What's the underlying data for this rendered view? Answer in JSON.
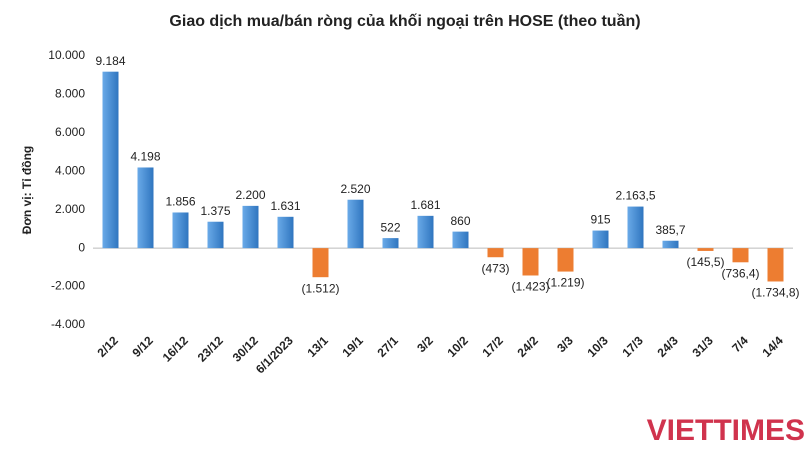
{
  "chart_data": {
    "type": "bar",
    "title": "Giao dịch mua/bán ròng của khối ngoại trên HOSE (theo tuần)",
    "y_label": "Đơn vị: Tỉ đồng",
    "watermark": "VIETTIMES",
    "categories": [
      "2/12",
      "9/12",
      "16/12",
      "23/12",
      "30/12",
      "6/1/2023",
      "13/1",
      "19/1",
      "27/1",
      "3/2",
      "10/2",
      "17/2",
      "24/2",
      "3/3",
      "10/3",
      "17/3",
      "24/3",
      "31/3",
      "7/4",
      "14/4"
    ],
    "values": [
      9184,
      4198,
      1856,
      1375,
      2200,
      1631,
      -1512,
      2520,
      522,
      1681,
      860,
      -473,
      -1423,
      -1219,
      915,
      2163.5,
      385.7,
      -145.5,
      -736.4,
      -1734.8
    ],
    "value_labels": [
      "9.184",
      "4.198",
      "1.856",
      "1.375",
      "2.200",
      "1.631",
      "(1.512)",
      "2.520",
      "522",
      "1.681",
      "860",
      "(473)",
      "(1.423)",
      "(1.219)",
      "915",
      "2.163,5",
      "385,7",
      "(145,5)",
      "(736,4)",
      "(1.734,8)"
    ],
    "positive_color": "#4a8fd6",
    "negative_color": "#ed7d31",
    "ylim": [
      -4000,
      10000
    ],
    "yticks": [
      {
        "value": -4000,
        "label": "-4.000"
      },
      {
        "value": -2000,
        "label": "-2.000"
      },
      0,
      {
        "value": 2000,
        "label": "2.000"
      },
      {
        "value": 4000,
        "label": "4.000"
      },
      {
        "value": 6000,
        "label": "6.000"
      },
      {
        "value": 8000,
        "label": "8.000"
      },
      {
        "value": 10000,
        "label": "10.000"
      }
    ],
    "grid": false
  }
}
